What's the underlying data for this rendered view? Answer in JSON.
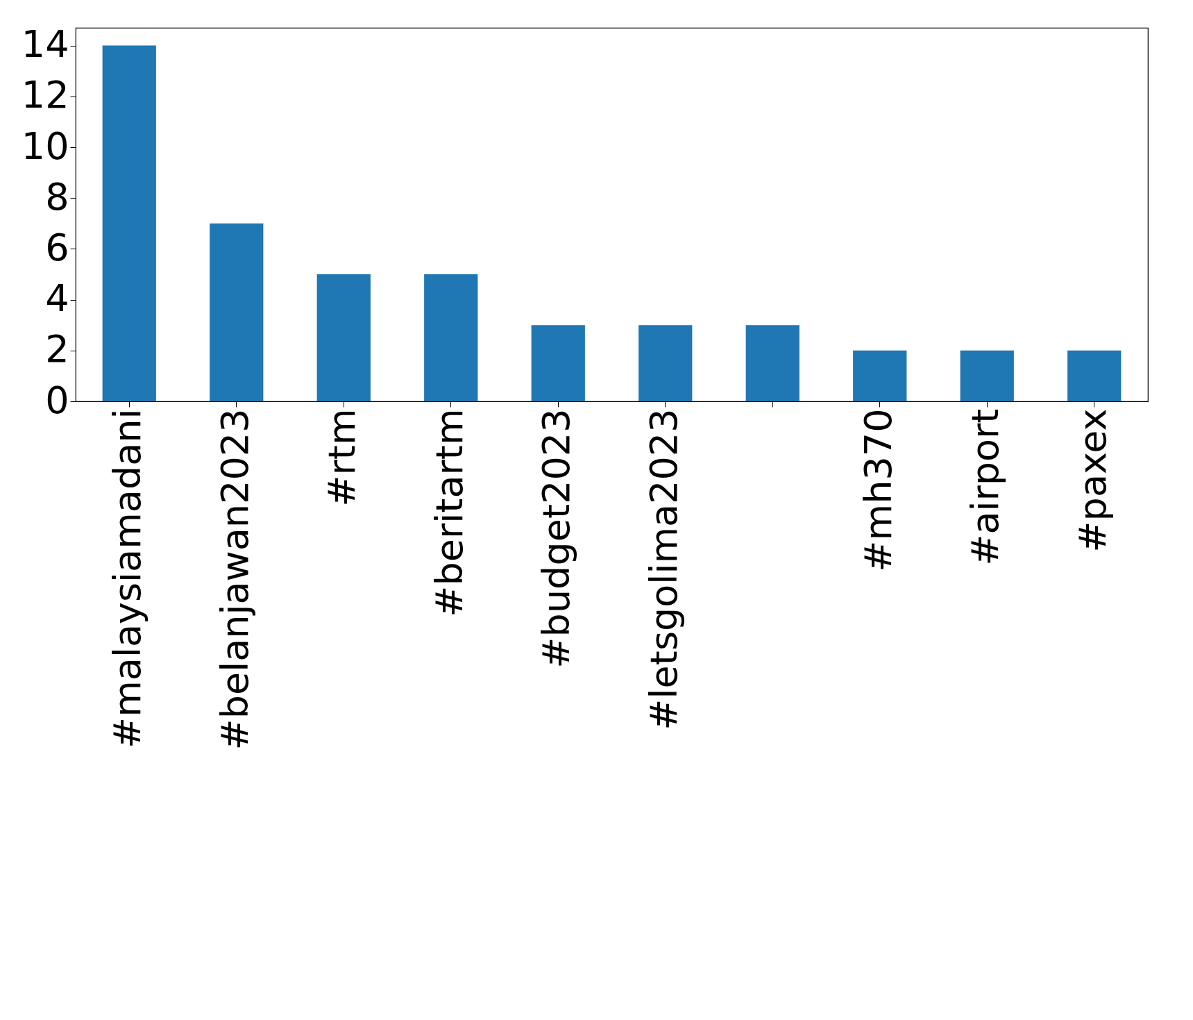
{
  "chart_data": {
    "type": "bar",
    "categories": [
      "#malaysiamadani",
      "#belanjawan2023",
      "#rtm",
      "#beritartm",
      "#budget2023",
      "#letsgolima2023",
      null,
      "#mh370",
      "#airport",
      "#paxex"
    ],
    "values": [
      14,
      7,
      5,
      5,
      3,
      3,
      3,
      2,
      2,
      2
    ],
    "color": "#1f77b4",
    "ylim": [
      0,
      14.7
    ],
    "yticks": [
      0,
      2,
      4,
      6,
      8,
      10,
      12,
      14
    ],
    "grid": false
  }
}
